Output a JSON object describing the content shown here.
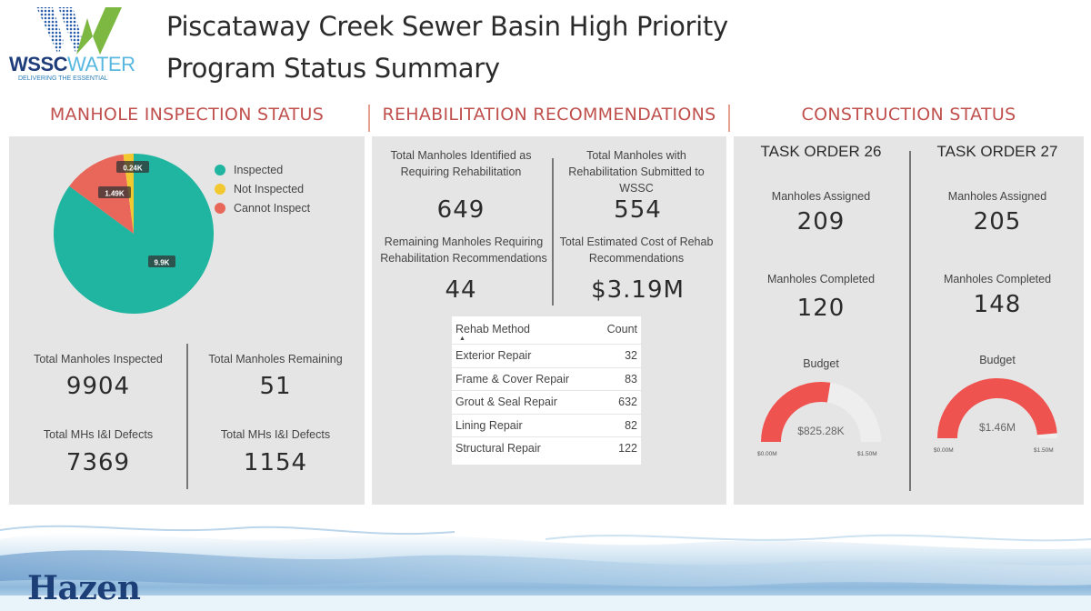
{
  "header": {
    "logo": {
      "brand_bold": "WSSC",
      "brand_light": "WATER",
      "tagline": "DELIVERING THE ESSENTIAL"
    },
    "title_line1": "Piscataway Creek Sewer Basin High Priority",
    "title_line2": "Program Status Summary"
  },
  "sections": {
    "inspection": "MANHOLE INSPECTION STATUS",
    "rehab": "REHABILITATION RECOMMENDATIONS",
    "construction": "CONSTRUCTION STATUS"
  },
  "inspection": {
    "chart_data": {
      "type": "pie",
      "series": [
        {
          "name": "Inspected",
          "value": 9.9,
          "label": "9.9K",
          "color": "#1fb5a0"
        },
        {
          "name": "Not Inspected",
          "value": 0.24,
          "label": "0.24K",
          "color": "#f2c830"
        },
        {
          "name": "Cannot Inspect",
          "value": 1.49,
          "label": "1.49K",
          "color": "#e8675a"
        }
      ],
      "legend_position": "right"
    },
    "stats": {
      "inspected_label": "Total Manholes Inspected",
      "inspected_value": "9904",
      "remaining_label": "Total Manholes Remaining",
      "remaining_value": "51",
      "defects_left_label": "Total MHs I&I Defects",
      "defects_left_value": "7369",
      "defects_right_label": "Total MHs I&I Defects",
      "defects_right_value": "1154"
    }
  },
  "rehab": {
    "identified_label": "Total Manholes Identified as Requiring Rehabilitation",
    "identified_value": "649",
    "submitted_label": "Total Manholes with Rehabilitation Submitted to WSSC",
    "submitted_value": "554",
    "remaining_label": "Remaining Manholes Requiring Rehabilitation Recommendations",
    "remaining_value": "44",
    "cost_label": "Total Estimated Cost of Rehab Recommendations",
    "cost_value": "$3.19M",
    "table": {
      "col_method": "Rehab Method",
      "col_count": "Count",
      "sort_arrow": "▲",
      "rows": [
        {
          "method": "Exterior Repair",
          "count": "32"
        },
        {
          "method": "Frame & Cover Repair",
          "count": "83"
        },
        {
          "method": "Grout & Seal Repair",
          "count": "632"
        },
        {
          "method": "Lining Repair",
          "count": "82"
        },
        {
          "method": "Structural Repair",
          "count": "122"
        }
      ]
    }
  },
  "construction": {
    "to26": {
      "title": "TASK ORDER 26",
      "assigned_label": "Manholes Assigned",
      "assigned_value": "209",
      "completed_label": "Manholes Completed",
      "completed_value": "120",
      "budget_label": "Budget",
      "budget_value": "$825.28K",
      "budget_min": "$0.00M",
      "budget_max": "$1.50M",
      "budget_fraction": 0.55,
      "gauge_color": "#ef5350"
    },
    "to27": {
      "title": "TASK ORDER 27",
      "assigned_label": "Manholes Assigned",
      "assigned_value": "205",
      "completed_label": "Manholes Completed",
      "completed_value": "148",
      "budget_label": "Budget",
      "budget_value": "$1.46M",
      "budget_min": "$0.00M",
      "budget_max": "$1.50M",
      "budget_fraction": 0.973,
      "gauge_color": "#ef5350"
    }
  },
  "footer": {
    "brand": "Hazen"
  }
}
